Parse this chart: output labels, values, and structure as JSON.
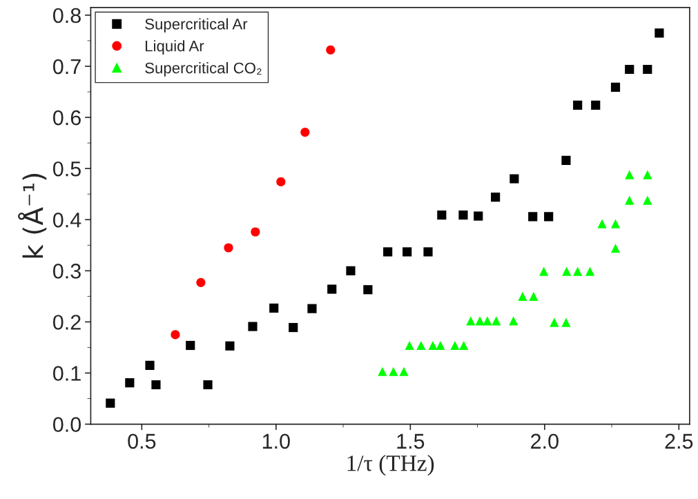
{
  "chart_data": {
    "type": "scatter",
    "xlabel": "1/τ (THz)",
    "ylabel": "k (Å⁻¹)",
    "xlim": [
      0.31,
      2.54
    ],
    "ylim": [
      0,
      0.815
    ],
    "xticks": [
      0.5,
      {
        "value": 1,
        "label": "1.0"
      },
      1.5,
      {
        "value": 2,
        "label": "2.0"
      },
      2.5
    ],
    "yticks": [
      {
        "value": 0,
        "label": "0.0"
      },
      0.1,
      0.2,
      0.3,
      0.4,
      0.5,
      0.6,
      0.7,
      0.8
    ],
    "grid": false,
    "legend": "top left",
    "series": [
      {
        "name": "Supercritical Ar",
        "color": "#000000",
        "marker": "square",
        "x": [
          0.383,
          0.455,
          0.53,
          0.553,
          0.681,
          0.746,
          0.828,
          0.913,
          0.992,
          1.064,
          1.134,
          1.208,
          1.278,
          1.342,
          1.416,
          1.488,
          1.566,
          1.617,
          1.697,
          1.753,
          1.817,
          1.887,
          1.956,
          2.015,
          2.08,
          2.123,
          2.19,
          2.264,
          2.316,
          2.383,
          2.427
        ],
        "values": [
          0.041,
          0.081,
          0.115,
          0.077,
          0.154,
          0.077,
          0.153,
          0.191,
          0.227,
          0.189,
          0.226,
          0.264,
          0.3,
          0.263,
          0.337,
          0.337,
          0.337,
          0.409,
          0.409,
          0.407,
          0.444,
          0.48,
          0.406,
          0.406,
          0.516,
          0.624,
          0.624,
          0.659,
          0.694,
          0.694,
          0.765
        ]
      },
      {
        "name": "Liquid Ar",
        "color": "#ff0000",
        "marker": "circle",
        "x": [
          0.625,
          0.72,
          0.823,
          0.923,
          1.018,
          1.108,
          1.203
        ],
        "values": [
          0.175,
          0.277,
          0.345,
          0.376,
          0.474,
          0.571,
          0.732
        ]
      },
      {
        "name": "Supercritical CO₂",
        "color": "#00ff00",
        "marker": "triangle",
        "x": [
          1.396,
          1.437,
          1.476,
          1.497,
          1.54,
          1.584,
          1.612,
          1.666,
          1.699,
          1.725,
          1.759,
          1.787,
          1.82,
          1.884,
          1.918,
          1.959,
          1.997,
          2.036,
          2.08,
          2.082,
          2.123,
          2.169,
          2.214,
          2.264,
          2.264,
          2.316,
          2.383,
          2.316,
          2.383
        ],
        "values": [
          0.103,
          0.103,
          0.103,
          0.154,
          0.154,
          0.154,
          0.154,
          0.154,
          0.154,
          0.202,
          0.202,
          0.202,
          0.202,
          0.202,
          0.25,
          0.25,
          0.299,
          0.199,
          0.199,
          0.299,
          0.299,
          0.299,
          0.392,
          0.392,
          0.344,
          0.438,
          0.438,
          0.488,
          0.488
        ]
      }
    ]
  }
}
